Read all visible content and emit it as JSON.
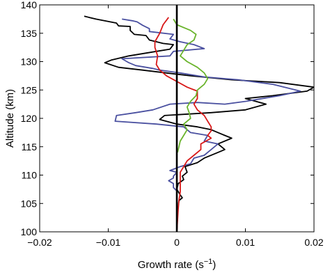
{
  "chart_data": {
    "type": "line",
    "xlabel": "Growth rate (s",
    "xlabel_sup": "−1",
    "xlabel_close": ")",
    "ylabel": "Altitude (km)",
    "xlim": [
      -0.02,
      0.02
    ],
    "ylim": [
      100,
      140
    ],
    "grid": false,
    "legend": "none",
    "x_ticks": [
      -0.02,
      -0.01,
      0,
      0.01,
      0.02
    ],
    "x_tick_labels": [
      "−0.02",
      "−0.01",
      "0",
      "0.01",
      "0.02"
    ],
    "y_ticks": [
      100,
      105,
      110,
      115,
      120,
      125,
      130,
      135,
      140
    ],
    "y_tick_labels": [
      "100",
      "105",
      "110",
      "115",
      "120",
      "125",
      "130",
      "135",
      "140"
    ],
    "vertical_line_x": 0,
    "series": [
      {
        "color": "#000000",
        "points": [
          [
            -0.0135,
            138
          ],
          [
            -0.0118,
            137.5
          ],
          [
            -0.0088,
            136.8
          ],
          [
            -0.0085,
            136.3
          ],
          [
            -0.0068,
            136.2
          ],
          [
            -0.0068,
            135.5
          ],
          [
            -0.0062,
            134.8
          ],
          [
            -0.0045,
            134.6
          ],
          [
            -0.004,
            133.8
          ],
          [
            -0.002,
            133.2
          ],
          [
            -0.0005,
            133
          ],
          [
            -0.001,
            132.2
          ],
          [
            -0.003,
            131.8
          ],
          [
            -0.007,
            131
          ],
          [
            -0.0095,
            130.3
          ],
          [
            -0.0105,
            129.8
          ],
          [
            -0.0085,
            129
          ],
          [
            -0.005,
            128.5
          ],
          [
            -0.0015,
            128
          ],
          [
            0.002,
            127.5
          ],
          [
            0.008,
            126.8
          ],
          [
            0.015,
            126.3
          ],
          [
            0.02,
            125.5
          ],
          [
            0.019,
            124.8
          ],
          [
            0.014,
            124
          ],
          [
            0.01,
            123.5
          ],
          [
            0.013,
            122.5
          ],
          [
            0.01,
            121.5
          ],
          [
            0.005,
            121
          ],
          [
            -0.0018,
            120.5
          ],
          [
            -0.0025,
            119.8
          ],
          [
            0.0,
            119
          ],
          [
            0.003,
            118.5
          ],
          [
            0.005,
            118
          ],
          [
            0.006,
            117.5
          ],
          [
            0.007,
            117
          ],
          [
            0.008,
            116.5
          ],
          [
            0.006,
            115.5
          ],
          [
            0.007,
            114.5
          ],
          [
            0.006,
            114
          ],
          [
            0.004,
            113
          ],
          [
            0.003,
            112.2
          ],
          [
            0.0012,
            111.5
          ],
          [
            0.0015,
            110.5
          ],
          [
            0.0008,
            109.8
          ],
          [
            0.001,
            109.2
          ],
          [
            0.0002,
            108.5
          ],
          [
            0.0,
            107.5
          ],
          [
            0.0005,
            106.5
          ],
          [
            0.0008,
            106
          ],
          [
            0.0003,
            105.5
          ],
          [
            0.0002,
            104.5
          ],
          [
            0.0001,
            103
          ],
          [
            0.0,
            100
          ]
        ]
      },
      {
        "color": "#4a50a0",
        "points": [
          [
            -0.008,
            137.5
          ],
          [
            -0.0065,
            137.2
          ],
          [
            -0.0058,
            137
          ],
          [
            -0.005,
            136.4
          ],
          [
            -0.004,
            135.8
          ],
          [
            -0.004,
            135.3
          ],
          [
            -0.0005,
            134.8
          ],
          [
            -0.001,
            134
          ],
          [
            0.0005,
            133.5
          ],
          [
            0.0025,
            133
          ],
          [
            0.004,
            132.3
          ],
          [
            -0.0005,
            131.8
          ],
          [
            -0.001,
            131
          ],
          [
            -0.008,
            130.5
          ],
          [
            -0.007,
            129.8
          ],
          [
            -0.006,
            129.3
          ],
          [
            -0.0035,
            128.8
          ],
          [
            -0.0025,
            128.5
          ],
          [
            0.0005,
            128
          ],
          [
            0.004,
            127.3
          ],
          [
            0.009,
            126.8
          ],
          [
            0.014,
            126
          ],
          [
            0.018,
            124.8
          ],
          [
            0.015,
            124
          ],
          [
            0.01,
            123
          ],
          [
            0.007,
            122.5
          ],
          [
            0.003,
            122.8
          ],
          [
            -0.001,
            122.5
          ],
          [
            -0.0035,
            121.5
          ],
          [
            -0.006,
            121
          ],
          [
            -0.0088,
            120.5
          ],
          [
            -0.009,
            119.5
          ],
          [
            -0.003,
            119
          ],
          [
            0.001,
            118.5
          ],
          [
            0.002,
            117.5
          ],
          [
            0.0045,
            117
          ],
          [
            0.004,
            116
          ],
          [
            0.006,
            115.5
          ],
          [
            0.005,
            114.5
          ],
          [
            0.004,
            113.5
          ],
          [
            0.0025,
            113
          ],
          [
            0.002,
            112
          ],
          [
            0.0005,
            111.5
          ],
          [
            -0.001,
            110.8
          ],
          [
            0.0,
            110.5
          ],
          [
            -0.0005,
            109.8
          ],
          [
            -0.0005,
            109.5
          ],
          [
            -0.0012,
            109
          ],
          [
            -0.0005,
            108.5
          ],
          [
            -0.0005,
            107.8
          ],
          [
            0.0,
            107.2
          ],
          [
            0.0,
            104
          ],
          [
            0.0,
            100
          ]
        ]
      },
      {
        "color": "#d81818",
        "points": [
          [
            -0.0012,
            137.8
          ],
          [
            -0.002,
            136.5
          ],
          [
            -0.0025,
            135
          ],
          [
            -0.0032,
            133.5
          ],
          [
            -0.0032,
            132.5
          ],
          [
            -0.0028,
            131
          ],
          [
            -0.003,
            129.5
          ],
          [
            -0.0025,
            128.5
          ],
          [
            -0.0015,
            127.5
          ],
          [
            0.0,
            126.5
          ],
          [
            0.0015,
            125.5
          ],
          [
            0.003,
            124.8
          ],
          [
            0.003,
            123.5
          ],
          [
            0.0025,
            122.5
          ],
          [
            0.003,
            121.5
          ],
          [
            0.004,
            120.5
          ],
          [
            0.0045,
            119.5
          ],
          [
            0.005,
            118.5
          ],
          [
            0.005,
            117.8
          ],
          [
            0.0045,
            117
          ],
          [
            0.005,
            116.5
          ],
          [
            0.0035,
            115.5
          ],
          [
            0.0035,
            114.5
          ],
          [
            0.0025,
            113.5
          ],
          [
            0.0015,
            112.5
          ],
          [
            0.001,
            111.5
          ],
          [
            0.0005,
            110.5
          ],
          [
            0.0005,
            108.5
          ],
          [
            0.0005,
            107
          ],
          [
            0.0003,
            105.5
          ],
          [
            0.0002,
            104
          ],
          [
            0.0,
            100
          ]
        ]
      },
      {
        "color": "#6ab42c",
        "points": [
          [
            -0.0005,
            137.5
          ],
          [
            0.0,
            136.5
          ],
          [
            0.002,
            135.5
          ],
          [
            0.0028,
            134.8
          ],
          [
            0.0025,
            133.8
          ],
          [
            0.0015,
            133
          ],
          [
            0.001,
            132
          ],
          [
            0.0005,
            131
          ],
          [
            0.0015,
            130
          ],
          [
            0.003,
            129
          ],
          [
            0.004,
            128
          ],
          [
            0.0045,
            127
          ],
          [
            0.004,
            126
          ],
          [
            0.003,
            125
          ],
          [
            0.0028,
            124
          ],
          [
            0.002,
            123
          ],
          [
            0.0015,
            122
          ],
          [
            0.0018,
            121
          ],
          [
            0.002,
            120
          ],
          [
            0.001,
            119
          ],
          [
            0.0015,
            118
          ],
          [
            0.001,
            117
          ],
          [
            0.0005,
            116
          ],
          [
            0.0003,
            115
          ],
          [
            0.0001,
            114
          ]
        ]
      }
    ]
  }
}
